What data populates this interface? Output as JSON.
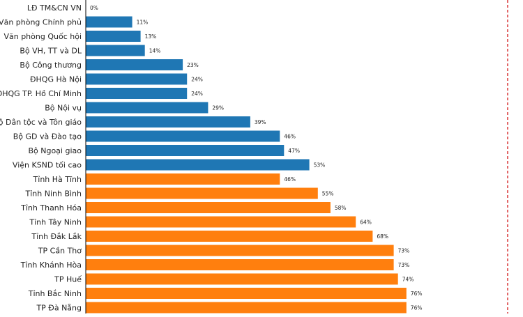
{
  "chart_data": {
    "type": "bar",
    "orientation": "horizontal",
    "categories": [
      "LĐ TM&CN VN",
      "Văn phòng Chính phủ",
      "Văn phòng Quốc hội",
      "Bộ VH, TT và DL",
      "Bộ Công thương",
      "ĐHQG Hà Nội",
      "ĐHQG TP. Hồ Chí Minh",
      "Bộ Nội vụ",
      "Bộ Dân tộc và Tôn giáo",
      "Bộ GD và Đào tạo",
      "Bộ Ngoại giao",
      "Viện KSND tối cao",
      "Tỉnh Hà Tĩnh",
      "Tỉnh Ninh Bình",
      "Tỉnh Thanh Hóa",
      "Tỉnh Tây Ninh",
      "Tỉnh Đắk Lắk",
      "TP Cần Thơ",
      "Tỉnh Khánh Hòa",
      "TP Huế",
      "Tỉnh Bắc Ninh",
      "TP Đà Nẵng"
    ],
    "values": [
      0,
      11,
      13,
      14,
      23,
      24,
      24,
      29,
      39,
      46,
      47,
      53,
      46,
      55,
      58,
      64,
      68,
      73,
      73,
      74,
      76,
      76
    ],
    "value_labels": [
      "0%",
      "11%",
      "13%",
      "14%",
      "23%",
      "24%",
      "24%",
      "29%",
      "39%",
      "46%",
      "47%",
      "53%",
      "46%",
      "55%",
      "58%",
      "64%",
      "68%",
      "73%",
      "73%",
      "74%",
      "76%",
      "76%"
    ],
    "groups": [
      "central",
      "central",
      "central",
      "central",
      "central",
      "central",
      "central",
      "central",
      "central",
      "central",
      "central",
      "central",
      "provincial",
      "provincial",
      "provincial",
      "provincial",
      "provincial",
      "provincial",
      "provincial",
      "provincial",
      "provincial",
      "provincial"
    ],
    "group_colors": {
      "central": "#1f77b4",
      "provincial": "#ff7f0e"
    },
    "xlim": [
      0,
      100
    ],
    "reference_line": {
      "value": 100,
      "style": "dashed",
      "color": "#d62728"
    },
    "grid": false,
    "legend": "none",
    "title": "",
    "xlabel": "",
    "ylabel": ""
  }
}
